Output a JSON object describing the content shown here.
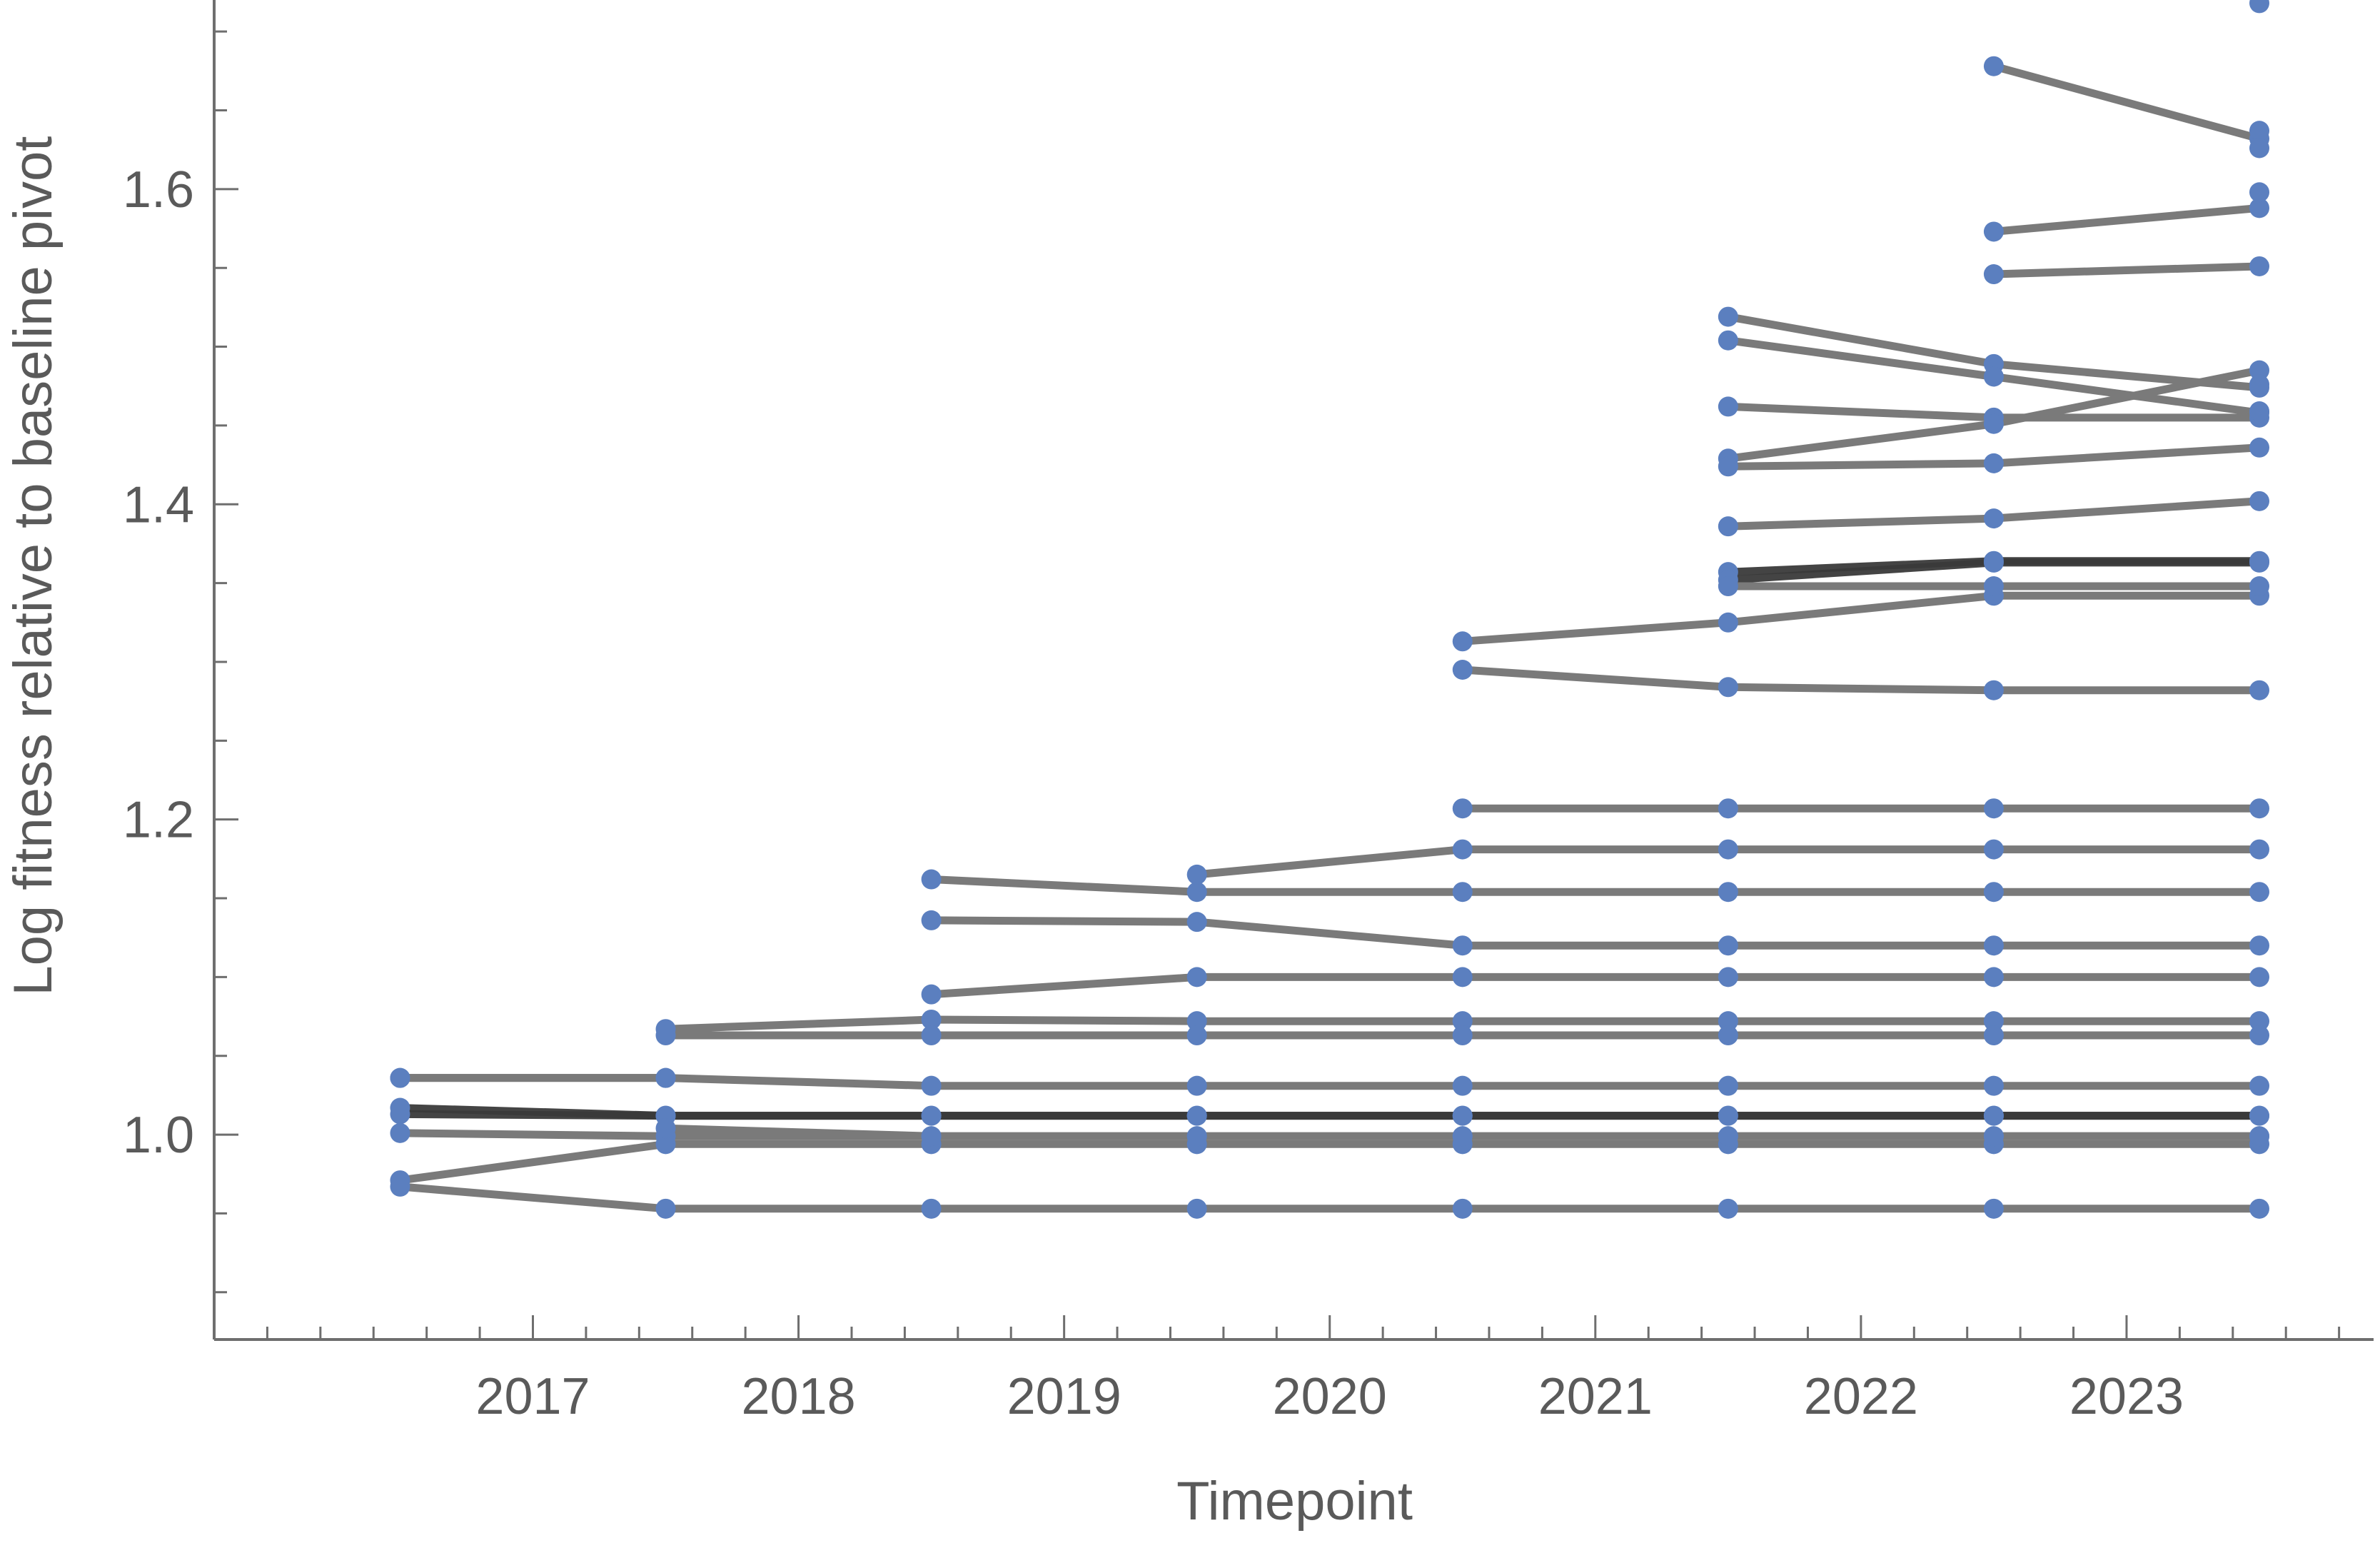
{
  "chart_data": {
    "type": "line",
    "title": "",
    "xlabel": "Timepoint",
    "ylabel": "Log fitness relative to baseline pivot",
    "x_ticks": [
      "2017",
      "2018",
      "2019",
      "2020",
      "2021",
      "2022",
      "2023"
    ],
    "y_ticks": [
      "1.0",
      "1.2",
      "1.4",
      "1.6"
    ],
    "xlim": [
      2015.8,
      2023.93
    ],
    "ylim": [
      0.87,
      1.72
    ],
    "grid": false,
    "legend": "none",
    "colors": {
      "line": "#7a7a7a",
      "line_dark": "#3a3a3a",
      "point": "#5b7fbf",
      "axis": "#6e6e6e",
      "text": "#5a5a5a"
    },
    "series": [
      {
        "x": [
          2016.5,
          2017.5
        ],
        "y": [
          1.036,
          1.036
        ]
      },
      {
        "x": [
          2016.5,
          2017.5,
          2018.5,
          2019.5,
          2020.5,
          2021.5,
          2022.5,
          2023.5
        ],
        "y": [
          1.036,
          1.036,
          1.031,
          1.031,
          1.031,
          1.031,
          1.031,
          1.031
        ]
      },
      {
        "x": [
          2016.5,
          2017.5,
          2018.5,
          2019.5,
          2020.5,
          2021.5,
          2022.5,
          2023.5
        ],
        "y": [
          1.017,
          1.012,
          1.012,
          1.012,
          1.012,
          1.012,
          1.012,
          1.012
        ],
        "dark": true
      },
      {
        "x": [
          2016.5,
          2017.5,
          2018.5,
          2019.5,
          2020.5,
          2021.5,
          2022.5,
          2023.5
        ],
        "y": [
          1.013,
          1.012,
          1.012,
          1.012,
          1.012,
          1.012,
          1.012,
          1.012
        ],
        "dark": true
      },
      {
        "x": [
          2016.5,
          2017.5,
          2018.5,
          2019.5,
          2020.5,
          2021.5,
          2022.5,
          2023.5
        ],
        "y": [
          1.001,
          0.999,
          0.999,
          0.999,
          0.999,
          0.999,
          0.999,
          0.999
        ]
      },
      {
        "x": [
          2016.5,
          2017.5,
          2018.5,
          2019.5,
          2020.5,
          2021.5,
          2022.5,
          2023.5
        ],
        "y": [
          0.971,
          0.994,
          0.994,
          0.994,
          0.994,
          0.994,
          0.994,
          0.994
        ]
      },
      {
        "x": [
          2016.5,
          2017.5,
          2018.5,
          2019.5,
          2020.5,
          2021.5,
          2022.5,
          2023.5
        ],
        "y": [
          0.967,
          0.953,
          0.953,
          0.953,
          0.953,
          0.953,
          0.953,
          0.953
        ]
      },
      {
        "x": [
          2017.5,
          2018.5,
          2019.5,
          2020.5,
          2021.5,
          2022.5,
          2023.5
        ],
        "y": [
          1.067,
          1.073,
          1.072,
          1.072,
          1.072,
          1.072,
          1.072
        ]
      },
      {
        "x": [
          2017.5,
          2018.5,
          2019.5,
          2020.5,
          2021.5,
          2022.5,
          2023.5
        ],
        "y": [
          1.063,
          1.063,
          1.063,
          1.063,
          1.063,
          1.063,
          1.063
        ]
      },
      {
        "x": [
          2017.5,
          2018.5,
          2019.5,
          2020.5,
          2021.5,
          2022.5,
          2023.5
        ],
        "y": [
          1.004,
          0.999,
          0.999,
          0.999,
          0.999,
          0.999,
          0.999
        ]
      },
      {
        "x": [
          2018.5,
          2019.5,
          2020.5,
          2021.5,
          2022.5,
          2023.5
        ],
        "y": [
          1.162,
          1.154,
          1.154,
          1.154,
          1.154,
          1.154
        ]
      },
      {
        "x": [
          2018.5,
          2019.5,
          2020.5,
          2021.5,
          2022.5,
          2023.5
        ],
        "y": [
          1.136,
          1.135,
          1.12,
          1.12,
          1.12,
          1.12
        ]
      },
      {
        "x": [
          2018.5,
          2019.5,
          2020.5,
          2021.5,
          2022.5,
          2023.5
        ],
        "y": [
          1.089,
          1.1,
          1.1,
          1.1,
          1.1,
          1.1
        ]
      },
      {
        "x": [
          2019.5,
          2020.5,
          2021.5,
          2022.5,
          2023.5
        ],
        "y": [
          1.165,
          1.181,
          1.181,
          1.181,
          1.181
        ]
      },
      {
        "x": [
          2020.5,
          2021.5,
          2022.5,
          2023.5
        ],
        "y": [
          1.207,
          1.207,
          1.207,
          1.207
        ]
      },
      {
        "x": [
          2020.5,
          2021.5,
          2022.5,
          2023.5
        ],
        "y": [
          1.313,
          1.325,
          1.342,
          1.342
        ]
      },
      {
        "x": [
          2020.5,
          2021.5,
          2022.5,
          2023.5
        ],
        "y": [
          1.295,
          1.284,
          1.282,
          1.282
        ]
      },
      {
        "x": [
          2021.5,
          2022.5,
          2023.5
        ],
        "y": [
          1.519,
          1.489,
          1.474
        ]
      },
      {
        "x": [
          2021.5,
          2022.5,
          2023.5
        ],
        "y": [
          1.504,
          1.481,
          1.458
        ]
      },
      {
        "x": [
          2021.5,
          2022.5,
          2023.5
        ],
        "y": [
          1.462,
          1.455,
          1.455
        ]
      },
      {
        "x": [
          2021.5,
          2022.5,
          2023.5
        ],
        "y": [
          1.429,
          1.451,
          1.485
        ]
      },
      {
        "x": [
          2021.5,
          2022.5,
          2023.5
        ],
        "y": [
          1.424,
          1.426,
          1.436
        ]
      },
      {
        "x": [
          2021.5,
          2022.5,
          2023.5
        ],
        "y": [
          1.386,
          1.391,
          1.402
        ]
      },
      {
        "x": [
          2021.5,
          2022.5,
          2023.5
        ],
        "y": [
          1.357,
          1.364,
          1.364
        ],
        "dark": true
      },
      {
        "x": [
          2021.5,
          2022.5,
          2023.5
        ],
        "y": [
          1.352,
          1.363,
          1.363
        ],
        "dark": true
      },
      {
        "x": [
          2021.5,
          2022.5,
          2023.5
        ],
        "y": [
          1.348,
          1.348,
          1.348
        ]
      },
      {
        "x": [
          2022.5,
          2023.5
        ],
        "y": [
          1.678,
          1.632
        ]
      },
      {
        "x": [
          2022.5,
          2023.5
        ],
        "y": [
          1.573,
          1.588
        ]
      },
      {
        "x": [
          2022.5,
          2023.5
        ],
        "y": [
          1.546,
          1.551
        ]
      }
    ],
    "extra_points": {
      "x": [
        2023.5,
        2023.5,
        2023.5,
        2023.5,
        2023.5,
        2023.5
      ],
      "y": [
        1.718,
        1.637,
        1.626,
        1.598,
        1.476,
        1.459
      ]
    }
  }
}
